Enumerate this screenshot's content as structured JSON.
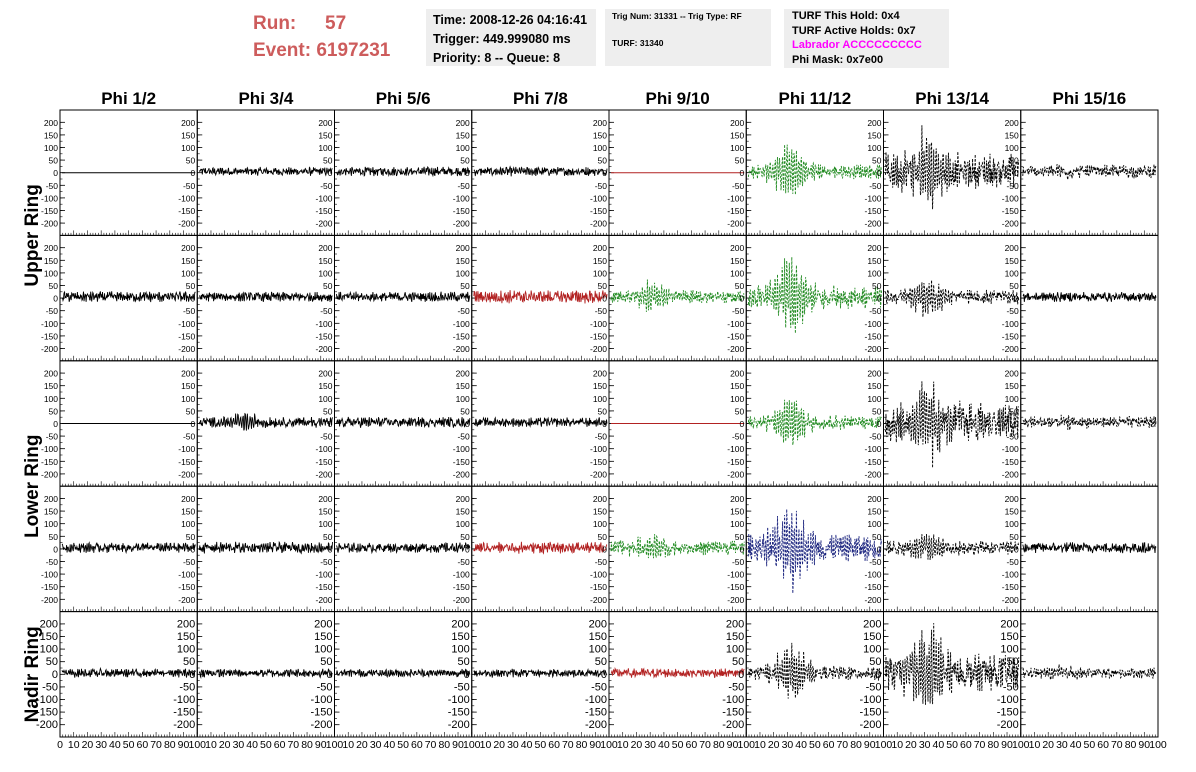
{
  "header": {
    "run_label": "Run:",
    "run_value": "57",
    "event_label": "Event:",
    "event_value": "6197231",
    "time_line": "Time: 2008-12-26 04:16:41",
    "trigger_line": "Trigger: 449.999080 ms",
    "priority_line": "Priority: 8 -- Queue: 8",
    "trig_line": "Trig Num: 31331 -- Trig Type: RF",
    "turf_line": "TURF: 31340",
    "turf_hold_line": "TURF This Hold: 0x4",
    "turf_active_line": "TURF Active Holds: 0x7",
    "labrador_line": "Labrador ACCCCCCCCC",
    "phi_mask_line": "Phi Mask: 0x7e00",
    "labrador_color": "#ff00ff",
    "run_color": "#cd5c5c"
  },
  "chart_data": {
    "type": "line",
    "columns": [
      "Phi 1/2",
      "Phi 3/4",
      "Phi 5/6",
      "Phi 7/8",
      "Phi 9/10",
      "Phi 11/12",
      "Phi 13/14",
      "Phi 15/16"
    ],
    "ring_labels": [
      {
        "text": "Upper Ring",
        "rows": [
          0,
          1
        ]
      },
      {
        "text": "Lower Ring",
        "rows": [
          2,
          3
        ]
      },
      {
        "text": "Nadir Ring",
        "rows": [
          4,
          4
        ]
      }
    ],
    "xlim": [
      0,
      100
    ],
    "ylim": [
      -225,
      225
    ],
    "y_ticks": [
      200,
      150,
      100,
      50,
      0,
      -50,
      -100,
      -150,
      -200
    ],
    "x_tick_labels": [
      "0",
      "10",
      "20",
      "30",
      "40",
      "50",
      "60",
      "70",
      "80",
      "90",
      "100"
    ],
    "color_map": {
      "k": "#000000",
      "r": "#b22222",
      "g": "#228b22",
      "b": "#1a237e"
    },
    "panels": [
      [
        {
          "color": "k",
          "flat": true,
          "amp": 0,
          "dashed": false,
          "burst": 0
        },
        {
          "color": "k",
          "flat": false,
          "amp": 13,
          "dashed": false,
          "burst": 0
        },
        {
          "color": "k",
          "flat": false,
          "amp": 14,
          "dashed": false,
          "burst": 0
        },
        {
          "color": "k",
          "flat": false,
          "amp": 14,
          "dashed": false,
          "burst": 0
        },
        {
          "color": "r",
          "flat": true,
          "amp": 0,
          "dashed": false,
          "burst": 0
        },
        {
          "color": "g",
          "flat": false,
          "amp": 22,
          "dashed": true,
          "burst": 90
        },
        {
          "color": "k",
          "flat": false,
          "amp": 55,
          "dashed": true,
          "burst": 110
        },
        {
          "color": "k",
          "flat": false,
          "amp": 20,
          "dashed": true,
          "burst": 15
        }
      ],
      [
        {
          "color": "k",
          "flat": false,
          "amp": 16,
          "dashed": false,
          "burst": 0
        },
        {
          "color": "k",
          "flat": false,
          "amp": 15,
          "dashed": false,
          "burst": 0
        },
        {
          "color": "k",
          "flat": false,
          "amp": 15,
          "dashed": false,
          "burst": 0
        },
        {
          "color": "r",
          "flat": false,
          "amp": 20,
          "dashed": false,
          "burst": 0
        },
        {
          "color": "g",
          "flat": false,
          "amp": 20,
          "dashed": true,
          "burst": 45
        },
        {
          "color": "g",
          "flat": false,
          "amp": 35,
          "dashed": true,
          "burst": 140
        },
        {
          "color": "k",
          "flat": false,
          "amp": 22,
          "dashed": true,
          "burst": 60
        },
        {
          "color": "k",
          "flat": false,
          "amp": 15,
          "dashed": false,
          "burst": 0
        }
      ],
      [
        {
          "color": "k",
          "flat": true,
          "amp": 0,
          "dashed": false,
          "burst": 0
        },
        {
          "color": "k",
          "flat": false,
          "amp": 16,
          "dashed": false,
          "burst": 25
        },
        {
          "color": "k",
          "flat": false,
          "amp": 16,
          "dashed": false,
          "burst": 0
        },
        {
          "color": "k",
          "flat": false,
          "amp": 14,
          "dashed": false,
          "burst": 0
        },
        {
          "color": "r",
          "flat": true,
          "amp": 0,
          "dashed": false,
          "burst": 0
        },
        {
          "color": "g",
          "flat": false,
          "amp": 22,
          "dashed": true,
          "burst": 85
        },
        {
          "color": "k",
          "flat": false,
          "amp": 60,
          "dashed": true,
          "burst": 120
        },
        {
          "color": "k",
          "flat": false,
          "amp": 18,
          "dashed": true,
          "burst": 10
        }
      ],
      [
        {
          "color": "k",
          "flat": false,
          "amp": 15,
          "dashed": false,
          "burst": 0
        },
        {
          "color": "k",
          "flat": false,
          "amp": 17,
          "dashed": false,
          "burst": 0
        },
        {
          "color": "k",
          "flat": false,
          "amp": 15,
          "dashed": false,
          "burst": 0
        },
        {
          "color": "r",
          "flat": false,
          "amp": 18,
          "dashed": false,
          "burst": 0
        },
        {
          "color": "g",
          "flat": false,
          "amp": 22,
          "dashed": true,
          "burst": 45
        },
        {
          "color": "b",
          "flat": false,
          "amp": 40,
          "dashed": true,
          "burst": 140
        },
        {
          "color": "k",
          "flat": false,
          "amp": 22,
          "dashed": true,
          "burst": 50
        },
        {
          "color": "k",
          "flat": false,
          "amp": 16,
          "dashed": false,
          "burst": 0
        }
      ],
      [
        {
          "color": "k",
          "flat": false,
          "amp": 13,
          "dashed": false,
          "burst": 0
        },
        {
          "color": "k",
          "flat": false,
          "amp": 13,
          "dashed": false,
          "burst": 0
        },
        {
          "color": "k",
          "flat": false,
          "amp": 12,
          "dashed": false,
          "burst": 0
        },
        {
          "color": "k",
          "flat": false,
          "amp": 13,
          "dashed": false,
          "burst": 0
        },
        {
          "color": "r",
          "flat": false,
          "amp": 14,
          "dashed": false,
          "burst": 0
        },
        {
          "color": "k",
          "flat": false,
          "amp": 22,
          "dashed": true,
          "burst": 90
        },
        {
          "color": "k",
          "flat": false,
          "amp": 55,
          "dashed": true,
          "burst": 140
        },
        {
          "color": "k",
          "flat": false,
          "amp": 16,
          "dashed": true,
          "burst": 20
        }
      ]
    ]
  }
}
